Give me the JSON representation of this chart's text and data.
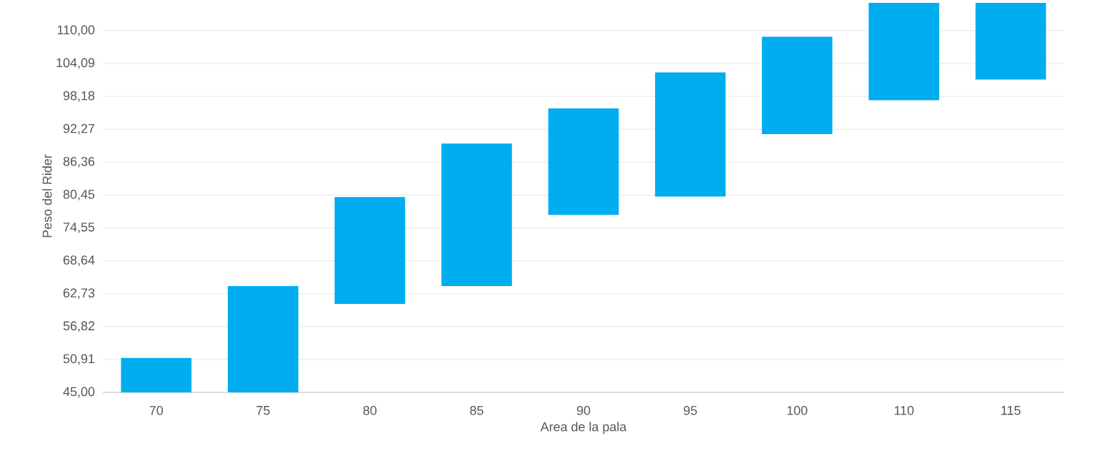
{
  "chart_data": {
    "type": "bar",
    "xlabel": "Area de la pala",
    "ylabel": "Peso del Rider",
    "categories": [
      "70",
      "75",
      "80",
      "85",
      "90",
      "95",
      "100",
      "110",
      "115"
    ],
    "base": [
      45,
      45,
      60.9,
      64.1,
      76.9,
      80.2,
      91.4,
      97.5,
      101.2
    ],
    "values": [
      6.2,
      19.1,
      19.2,
      25.6,
      19.1,
      22.3,
      17.5,
      17.5,
      13.8
    ],
    "color": "#00adef",
    "ylim": [
      45,
      115.5
    ],
    "yticks": [
      {
        "value": 45,
        "label": "45,00"
      },
      {
        "value": 50.91,
        "label": "50,91"
      },
      {
        "value": 56.82,
        "label": "56,82"
      },
      {
        "value": 62.73,
        "label": "62,73"
      },
      {
        "value": 68.64,
        "label": "68,64"
      },
      {
        "value": 74.55,
        "label": "74,55"
      },
      {
        "value": 80.45,
        "label": "80,45"
      },
      {
        "value": 86.36,
        "label": "86,36"
      },
      {
        "value": 92.27,
        "label": "92,27"
      },
      {
        "value": 98.18,
        "label": "98,18"
      },
      {
        "value": 104.09,
        "label": "104,09"
      },
      {
        "value": 110,
        "label": "110,00"
      }
    ],
    "grid": "y"
  }
}
